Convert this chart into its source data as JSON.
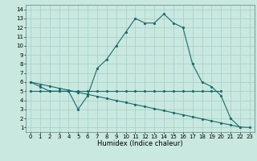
{
  "xlabel": "Humidex (Indice chaleur)",
  "xlim": [
    -0.5,
    23.5
  ],
  "ylim": [
    0.5,
    14.5
  ],
  "xticks": [
    0,
    1,
    2,
    3,
    4,
    5,
    6,
    7,
    8,
    9,
    10,
    11,
    12,
    13,
    14,
    15,
    16,
    17,
    18,
    19,
    20,
    21,
    22,
    23
  ],
  "yticks": [
    1,
    2,
    3,
    4,
    5,
    6,
    7,
    8,
    9,
    10,
    11,
    12,
    13,
    14
  ],
  "bg_color": "#c8e8e0",
  "grid_color": "#a0c8c0",
  "line_color": "#1a6b6b",
  "curve1_x": [
    0,
    1,
    2,
    3,
    4,
    5,
    6,
    7,
    8,
    9,
    10,
    11,
    12,
    13,
    14,
    15,
    16,
    17,
    18,
    19,
    20,
    21,
    22
  ],
  "curve1_y": [
    6,
    5.5,
    5,
    5,
    5,
    3,
    4.5,
    7.5,
    8.5,
    10,
    11.5,
    13,
    12.5,
    12.5,
    13.5,
    12.5,
    12,
    8,
    6,
    5.5,
    4.5,
    2,
    1
  ],
  "curve2_x": [
    0,
    1,
    2,
    3,
    4,
    5,
    6,
    7,
    8,
    9,
    10,
    11,
    12,
    13,
    14,
    15,
    16,
    17,
    18,
    19,
    20
  ],
  "curve2_y": [
    5,
    5,
    5,
    5,
    5,
    5,
    5,
    5,
    5,
    5,
    5,
    5,
    5,
    5,
    5,
    5,
    5,
    5,
    5,
    5,
    5
  ],
  "curve3_x": [
    0,
    1,
    2,
    3,
    4,
    5,
    6,
    7,
    8,
    9,
    10,
    11,
    12,
    13,
    14,
    15,
    16,
    17,
    18,
    19,
    20,
    21,
    22,
    23
  ],
  "curve3_y": [
    6,
    5.77,
    5.55,
    5.32,
    5.1,
    4.87,
    4.65,
    4.42,
    4.2,
    3.97,
    3.75,
    3.52,
    3.3,
    3.07,
    2.85,
    2.62,
    2.4,
    2.17,
    1.95,
    1.72,
    1.5,
    1.27,
    1.05,
    1.0
  ],
  "xlabel_fontsize": 6,
  "tick_fontsize": 5
}
